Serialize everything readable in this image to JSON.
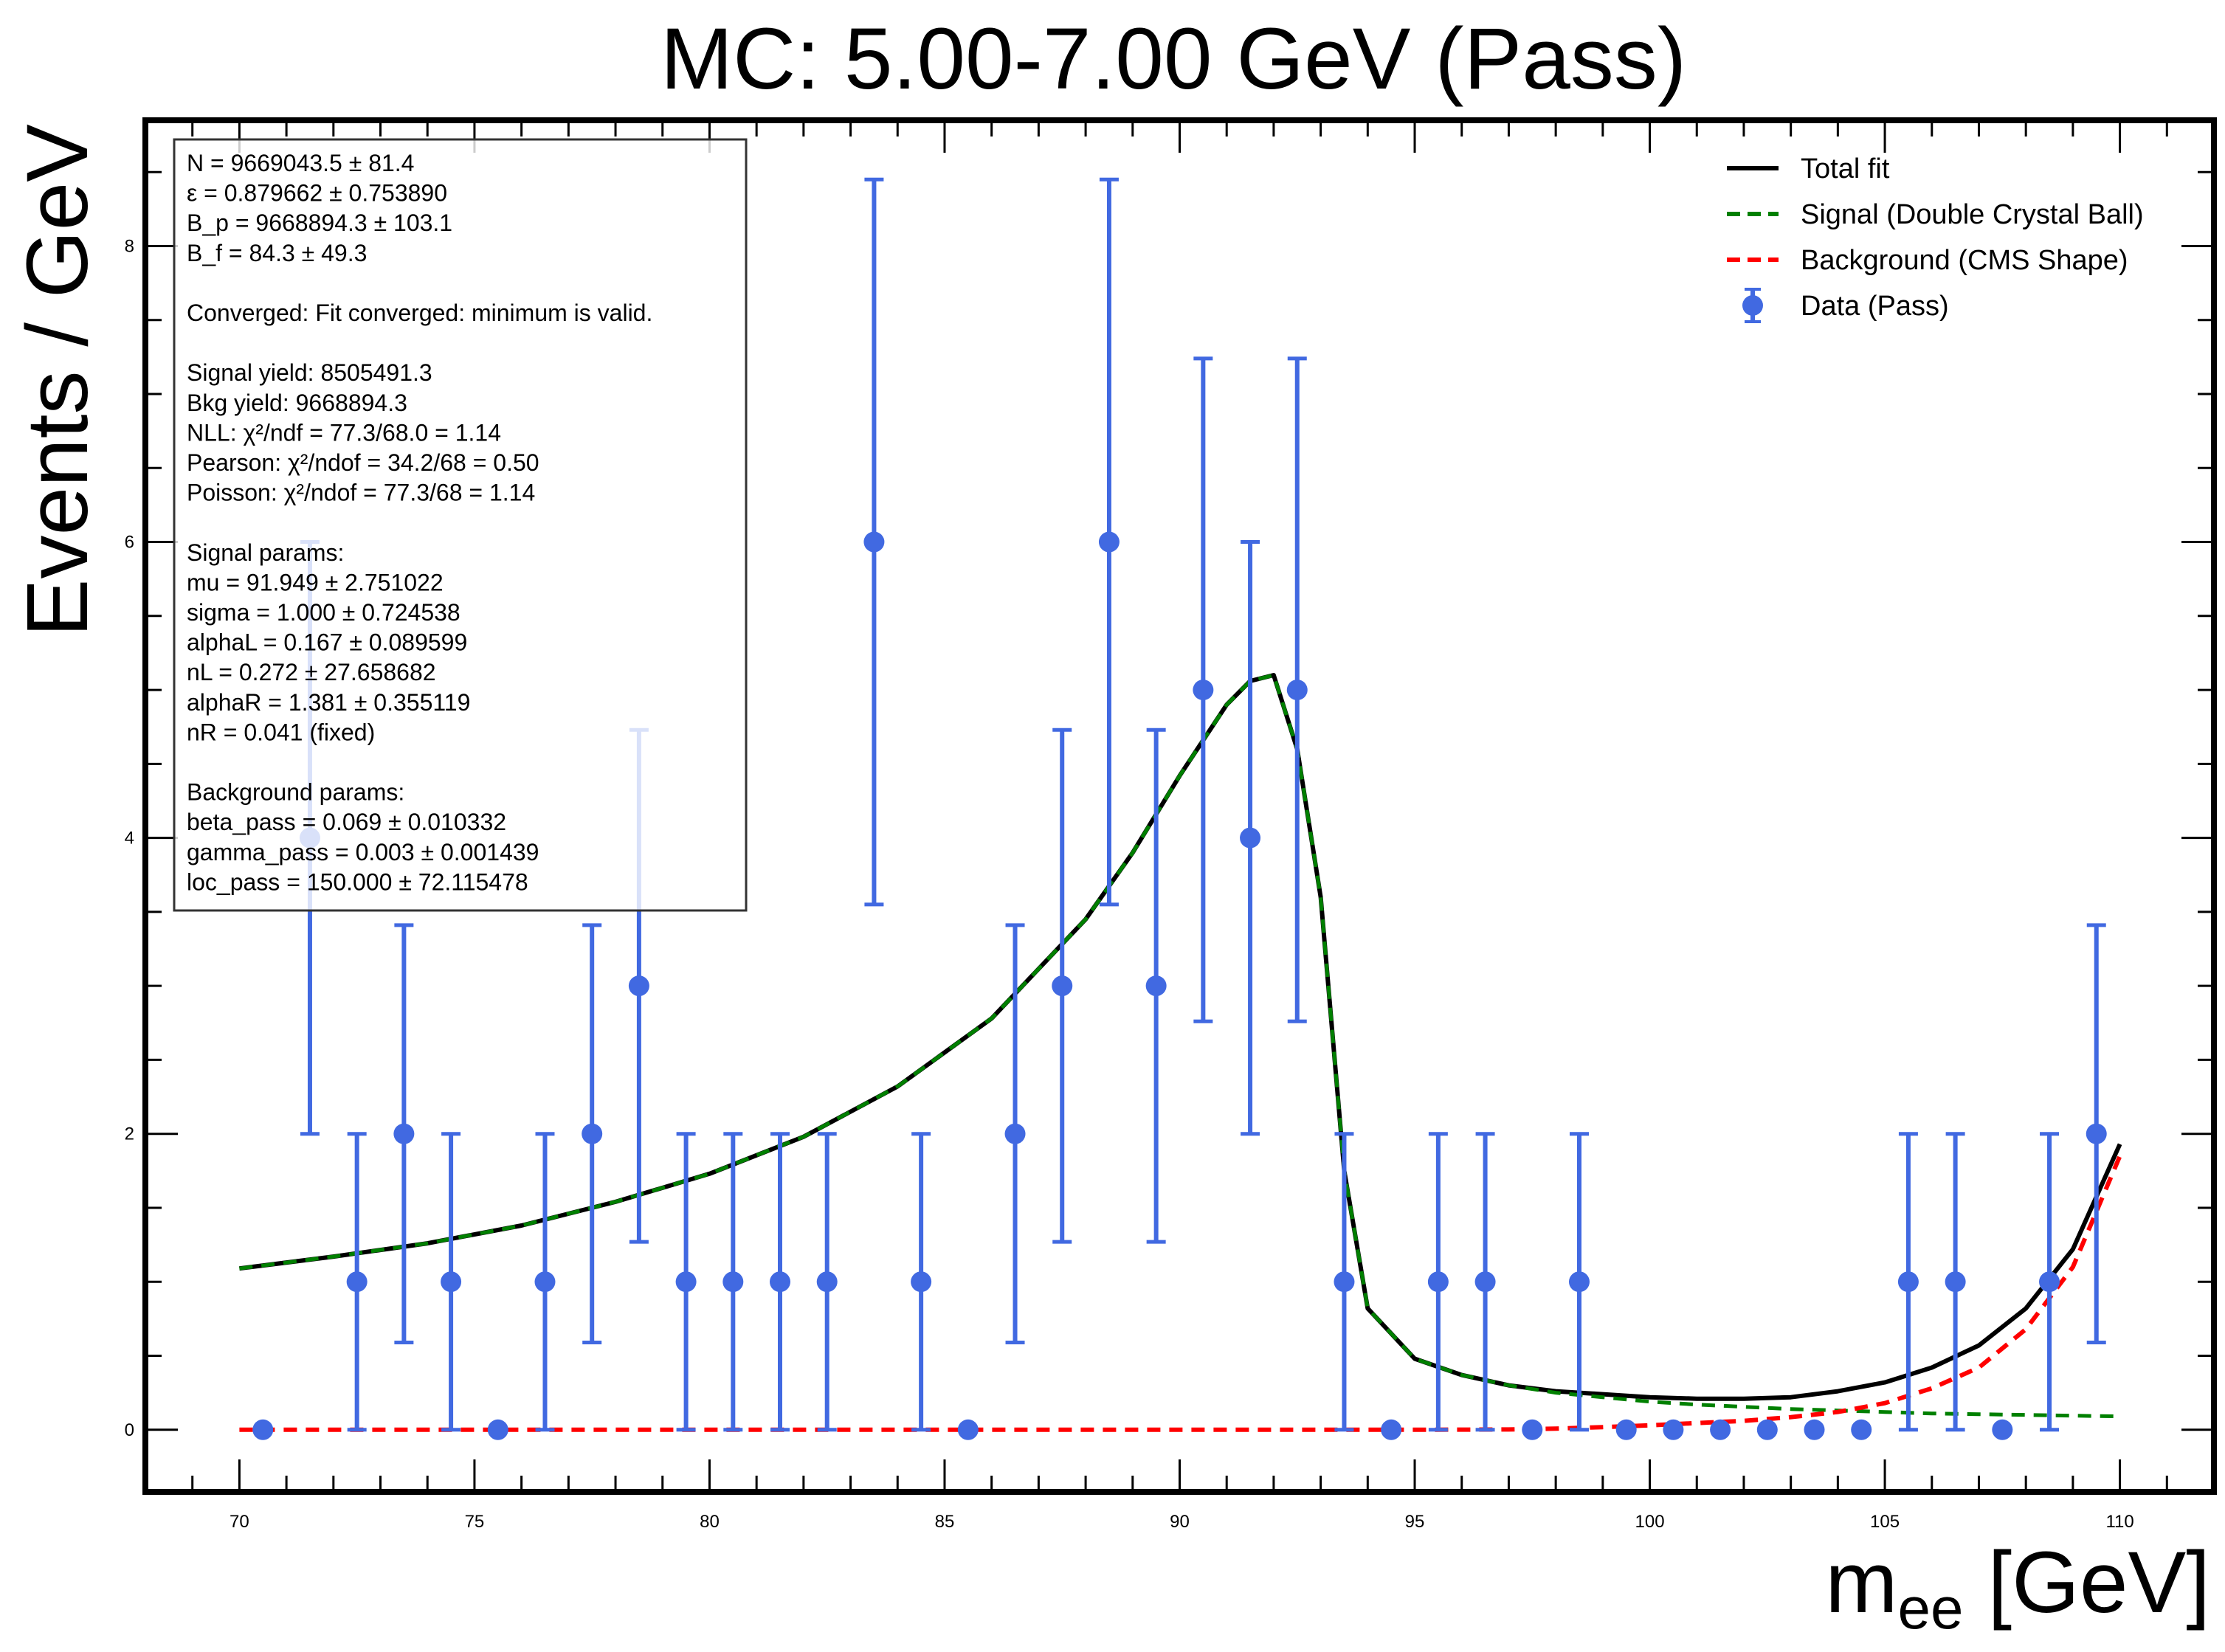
{
  "chart_data": {
    "type": "scatter",
    "title": "MC: 5.00-7.00 GeV (Pass)",
    "xlabel_main": "m",
    "xlabel_sub": "ee",
    "xlabel_unit": " [GeV]",
    "ylabel": "Events / GeV",
    "xlim": [
      68,
      112
    ],
    "ylim": [
      -0.42,
      8.85
    ],
    "x_ticks": [
      70,
      75,
      80,
      85,
      90,
      95,
      100,
      105,
      110
    ],
    "x_tick_labels": [
      "70",
      "75",
      "80",
      "85",
      "90",
      "95",
      "100",
      "105",
      "110"
    ],
    "y_ticks": [
      0,
      2,
      4,
      6,
      8
    ],
    "y_tick_labels": [
      "0",
      "2",
      "4",
      "6",
      "8"
    ],
    "grid": false,
    "legend_position": "top-right",
    "legend": [
      {
        "label": "Total fit",
        "style": "solid",
        "color": "#000000"
      },
      {
        "label": "Signal (Double Crystal Ball)",
        "style": "dashed",
        "color": "#008000"
      },
      {
        "label": "Background (CMS Shape)",
        "style": "dashed",
        "color": "#ff0000"
      },
      {
        "label": "Data (Pass)",
        "style": "marker",
        "color": "#4169e1"
      }
    ],
    "data_points": [
      {
        "x": 70.5,
        "y": 0,
        "lo": 0,
        "hi": 0
      },
      {
        "x": 71.5,
        "y": 4,
        "lo": 2,
        "hi": 6
      },
      {
        "x": 72.5,
        "y": 1,
        "lo": 0,
        "hi": 2
      },
      {
        "x": 73.5,
        "y": 2,
        "lo": 0.59,
        "hi": 3.41
      },
      {
        "x": 74.5,
        "y": 1,
        "lo": 0,
        "hi": 2
      },
      {
        "x": 75.5,
        "y": 0,
        "lo": 0,
        "hi": 0
      },
      {
        "x": 76.5,
        "y": 1,
        "lo": 0,
        "hi": 2
      },
      {
        "x": 77.5,
        "y": 2,
        "lo": 0.59,
        "hi": 3.41
      },
      {
        "x": 78.5,
        "y": 3,
        "lo": 1.27,
        "hi": 4.73
      },
      {
        "x": 79.5,
        "y": 1,
        "lo": 0,
        "hi": 2
      },
      {
        "x": 80.5,
        "y": 1,
        "lo": 0,
        "hi": 2
      },
      {
        "x": 81.5,
        "y": 1,
        "lo": 0,
        "hi": 2
      },
      {
        "x": 82.5,
        "y": 1,
        "lo": 0,
        "hi": 2
      },
      {
        "x": 83.5,
        "y": 6,
        "lo": 3.55,
        "hi": 8.45
      },
      {
        "x": 84.5,
        "y": 1,
        "lo": 0,
        "hi": 2
      },
      {
        "x": 85.5,
        "y": 0,
        "lo": 0,
        "hi": 0
      },
      {
        "x": 86.5,
        "y": 2,
        "lo": 0.59,
        "hi": 3.41
      },
      {
        "x": 87.5,
        "y": 3,
        "lo": 1.27,
        "hi": 4.73
      },
      {
        "x": 88.5,
        "y": 6,
        "lo": 3.55,
        "hi": 8.45
      },
      {
        "x": 89.5,
        "y": 3,
        "lo": 1.27,
        "hi": 4.73
      },
      {
        "x": 90.5,
        "y": 5,
        "lo": 2.76,
        "hi": 7.24
      },
      {
        "x": 91.5,
        "y": 4,
        "lo": 2,
        "hi": 6
      },
      {
        "x": 92.5,
        "y": 5,
        "lo": 2.76,
        "hi": 7.24
      },
      {
        "x": 93.5,
        "y": 1,
        "lo": 0,
        "hi": 2
      },
      {
        "x": 94.5,
        "y": 0,
        "lo": 0,
        "hi": 0
      },
      {
        "x": 95.5,
        "y": 1,
        "lo": 0,
        "hi": 2
      },
      {
        "x": 96.5,
        "y": 1,
        "lo": 0,
        "hi": 2
      },
      {
        "x": 97.5,
        "y": 0,
        "lo": 0,
        "hi": 0
      },
      {
        "x": 98.5,
        "y": 1,
        "lo": 0,
        "hi": 2
      },
      {
        "x": 99.5,
        "y": 0,
        "lo": 0,
        "hi": 0
      },
      {
        "x": 100.5,
        "y": 0,
        "lo": 0,
        "hi": 0
      },
      {
        "x": 101.5,
        "y": 0,
        "lo": 0,
        "hi": 0
      },
      {
        "x": 102.5,
        "y": 0,
        "lo": 0,
        "hi": 0
      },
      {
        "x": 103.5,
        "y": 0,
        "lo": 0,
        "hi": 0
      },
      {
        "x": 104.5,
        "y": 0,
        "lo": 0,
        "hi": 0
      },
      {
        "x": 105.5,
        "y": 1,
        "lo": 0,
        "hi": 2
      },
      {
        "x": 106.5,
        "y": 1,
        "lo": 0,
        "hi": 2
      },
      {
        "x": 107.5,
        "y": 0,
        "lo": 0,
        "hi": 0
      },
      {
        "x": 108.5,
        "y": 1,
        "lo": 0,
        "hi": 2
      },
      {
        "x": 109.5,
        "y": 2,
        "lo": 0.59,
        "hi": 3.41
      }
    ],
    "total_fit": [
      [
        70,
        1.09
      ],
      [
        72,
        1.17
      ],
      [
        74,
        1.26
      ],
      [
        76,
        1.38
      ],
      [
        78,
        1.54
      ],
      [
        80,
        1.73
      ],
      [
        82,
        1.98
      ],
      [
        84,
        2.32
      ],
      [
        86,
        2.78
      ],
      [
        88,
        3.45
      ],
      [
        89,
        3.9
      ],
      [
        90,
        4.42
      ],
      [
        91,
        4.9
      ],
      [
        91.5,
        5.06
      ],
      [
        92,
        5.1
      ],
      [
        92.5,
        4.6
      ],
      [
        93,
        3.6
      ],
      [
        93.5,
        1.75
      ],
      [
        94,
        0.82
      ],
      [
        95,
        0.48
      ],
      [
        96,
        0.37
      ],
      [
        97,
        0.3
      ],
      [
        98,
        0.26
      ],
      [
        99,
        0.24
      ],
      [
        100,
        0.22
      ],
      [
        101,
        0.21
      ],
      [
        102,
        0.21
      ],
      [
        103,
        0.22
      ],
      [
        104,
        0.26
      ],
      [
        105,
        0.32
      ],
      [
        106,
        0.42
      ],
      [
        107,
        0.57
      ],
      [
        108,
        0.82
      ],
      [
        109,
        1.22
      ],
      [
        110,
        1.93
      ]
    ],
    "signal_fit": [
      [
        70,
        1.09
      ],
      [
        72,
        1.17
      ],
      [
        74,
        1.26
      ],
      [
        76,
        1.38
      ],
      [
        78,
        1.54
      ],
      [
        80,
        1.73
      ],
      [
        82,
        1.98
      ],
      [
        84,
        2.32
      ],
      [
        86,
        2.78
      ],
      [
        88,
        3.45
      ],
      [
        89,
        3.9
      ],
      [
        90,
        4.42
      ],
      [
        91,
        4.9
      ],
      [
        91.5,
        5.06
      ],
      [
        92,
        5.1
      ],
      [
        92.5,
        4.6
      ],
      [
        93,
        3.6
      ],
      [
        93.5,
        1.75
      ],
      [
        94,
        0.82
      ],
      [
        95,
        0.48
      ],
      [
        96,
        0.37
      ],
      [
        97,
        0.3
      ],
      [
        98,
        0.25
      ],
      [
        99,
        0.22
      ],
      [
        100,
        0.19
      ],
      [
        101,
        0.17
      ],
      [
        102,
        0.155
      ],
      [
        103,
        0.14
      ],
      [
        104,
        0.13
      ],
      [
        105,
        0.12
      ],
      [
        106,
        0.11
      ],
      [
        107,
        0.105
      ],
      [
        108,
        0.1
      ],
      [
        109,
        0.095
      ],
      [
        110,
        0.09
      ]
    ],
    "background_fit": [
      [
        70,
        0
      ],
      [
        75,
        0
      ],
      [
        80,
        0
      ],
      [
        85,
        0
      ],
      [
        90,
        0
      ],
      [
        95,
        0
      ],
      [
        97,
        0.002
      ],
      [
        98,
        0.008
      ],
      [
        99,
        0.018
      ],
      [
        100,
        0.03
      ],
      [
        101,
        0.045
      ],
      [
        102,
        0.06
      ],
      [
        103,
        0.085
      ],
      [
        104,
        0.12
      ],
      [
        105,
        0.18
      ],
      [
        106,
        0.28
      ],
      [
        107,
        0.42
      ],
      [
        108,
        0.68
      ],
      [
        109,
        1.1
      ],
      [
        110,
        1.85
      ]
    ]
  },
  "info_box": [
    "N = 9669043.5 ± 81.4",
    "ε = 0.879662 ± 0.753890",
    "B_p = 9668894.3 ± 103.1",
    "B_f = 84.3 ± 49.3",
    "",
    "Converged: Fit converged: minimum is valid.",
    "",
    "Signal yield: 8505491.3",
    "Bkg yield: 9668894.3",
    "NLL: χ²/ndf = 77.3/68.0 = 1.14",
    "Pearson: χ²/ndof = 34.2/68 = 0.50",
    "Poisson: χ²/ndof = 77.3/68 = 1.14",
    "",
    "Signal params:",
    "mu = 91.949 ± 2.751022",
    "sigma = 1.000 ± 0.724538",
    "alphaL = 0.167 ± 0.089599",
    "nL = 0.272 ± 27.658682",
    "alphaR = 1.381 ± 0.355119",
    "nR = 0.041 (fixed)",
    "",
    "Background params:",
    "beta_pass = 0.069 ± 0.010332",
    "gamma_pass = 0.003 ± 0.001439",
    "loc_pass = 150.000 ± 72.115478"
  ]
}
